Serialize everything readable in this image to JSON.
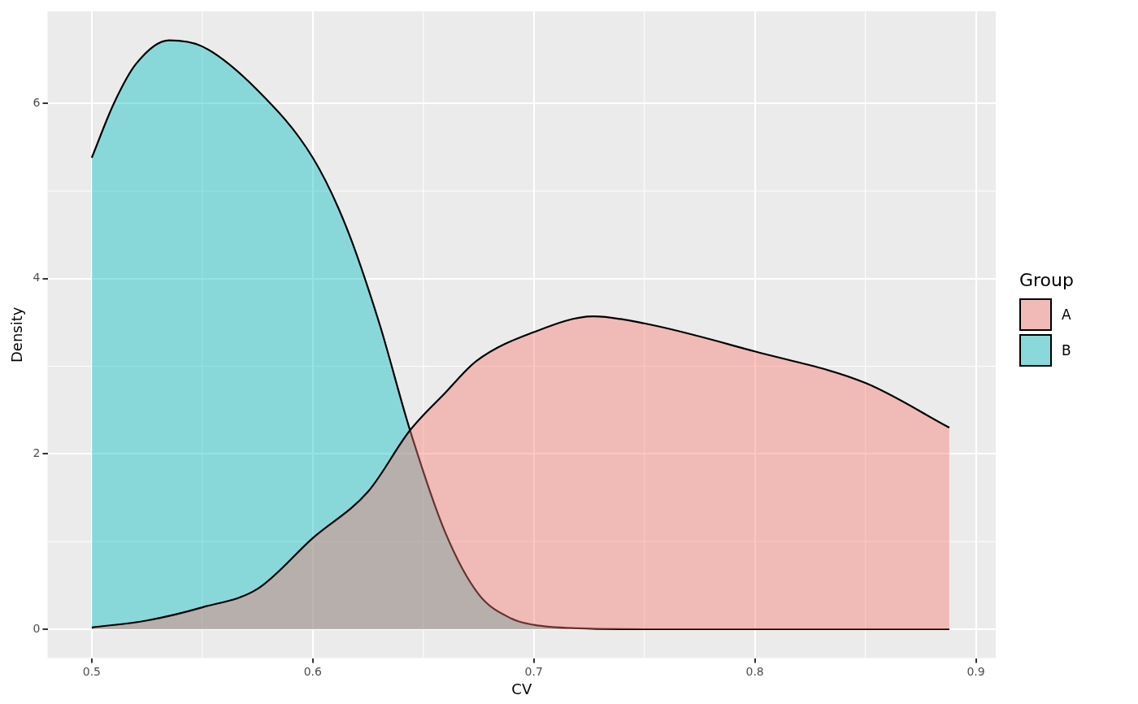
{
  "chart_data": {
    "type": "area",
    "xlabel": "CV",
    "ylabel": "Density",
    "legend_title": "Group",
    "legend": "right",
    "grid": true,
    "xlim": [
      0.48,
      0.909
    ],
    "ylim": [
      -0.33,
      7.05
    ],
    "xticks": [
      0.5,
      0.6,
      0.7,
      0.8,
      0.9
    ],
    "yticks": [
      0,
      2,
      4,
      6
    ],
    "series": [
      {
        "name": "A",
        "color": "#f8766d",
        "x": [
          0.5,
          0.525,
          0.55,
          0.575,
          0.6,
          0.625,
          0.644,
          0.66,
          0.674,
          0.7,
          0.727,
          0.75,
          0.8,
          0.85,
          0.888
        ],
        "values": [
          0.02,
          0.1,
          0.25,
          0.46,
          1.04,
          1.57,
          2.27,
          2.7,
          3.06,
          3.39,
          3.57,
          3.49,
          3.17,
          2.81,
          2.3
        ]
      },
      {
        "name": "B",
        "color": "#00bfc4",
        "x": [
          0.5,
          0.51,
          0.52,
          0.535,
          0.55,
          0.575,
          0.6,
          0.615,
          0.63,
          0.644,
          0.66,
          0.675,
          0.69,
          0.7,
          0.72,
          0.75,
          0.8,
          0.888
        ],
        "values": [
          5.38,
          6.0,
          6.45,
          6.72,
          6.65,
          6.15,
          5.38,
          4.6,
          3.5,
          2.27,
          1.1,
          0.4,
          0.12,
          0.05,
          0.01,
          0,
          0,
          0
        ]
      }
    ]
  }
}
